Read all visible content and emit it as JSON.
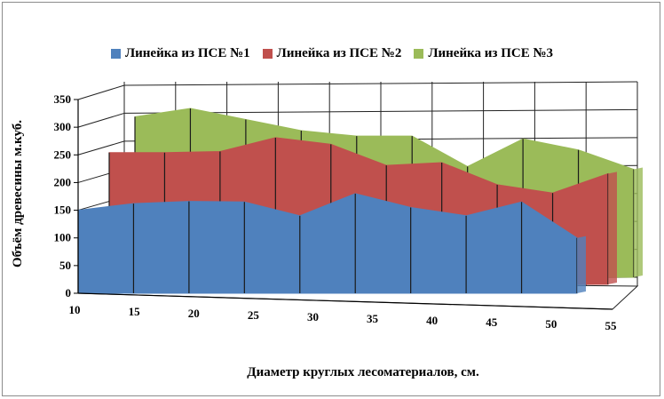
{
  "chart_data": {
    "type": "area",
    "x": [
      10,
      15,
      20,
      25,
      30,
      35,
      40,
      45,
      50,
      55
    ],
    "series": [
      {
        "name": "Линейка из ПСЕ №1",
        "color": "#4f81bd",
        "values": [
          150,
          162,
          166,
          165,
          140,
          180,
          155,
          140,
          165,
          100
        ]
      },
      {
        "name": "Линейка из ПСЕ №2",
        "color": "#c0504d",
        "values": [
          238,
          238,
          240,
          265,
          253,
          215,
          220,
          180,
          165,
          200
        ]
      },
      {
        "name": "Линейка из ПСЕ №3",
        "color": "#9bbb59",
        "values": [
          290,
          305,
          285,
          265,
          255,
          255,
          200,
          250,
          230,
          195
        ]
      }
    ],
    "ylim": [
      0,
      350
    ],
    "yticks": [
      0,
      50,
      100,
      150,
      200,
      250,
      300,
      350
    ],
    "xticks": [
      "10",
      "15",
      "20",
      "25",
      "30",
      "35",
      "40",
      "45",
      "50",
      "55"
    ],
    "ylabel": "Объём древесины м.куб.",
    "xlabel": "Диаметр круглых лесоматериалов, см.",
    "grid": true,
    "legend": "top-center"
  }
}
